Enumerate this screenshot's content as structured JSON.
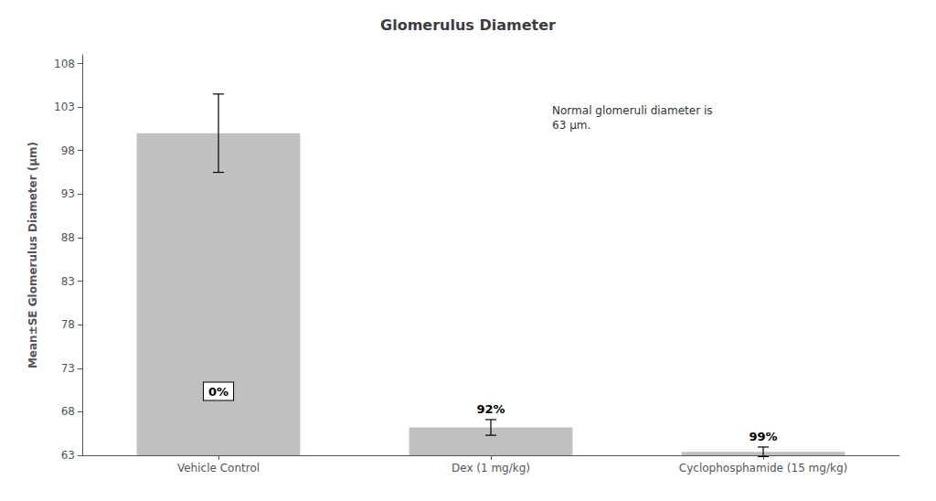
{
  "chart_data": {
    "type": "bar",
    "title": "Glomerulus Diameter",
    "ylabel": "Mean±SE Glomerulus Diameter (µm)",
    "categories": [
      "Vehicle Control",
      "Dex (1 mg/kg)",
      "Cyclophosphamide (15 mg/kg)"
    ],
    "values": [
      100.0,
      66.2,
      63.4
    ],
    "errors": [
      4.5,
      0.9,
      0.55
    ],
    "bar_labels": [
      "0%",
      "92%",
      "99%"
    ],
    "annotation": "Normal glomeruli diameter is\n63 µm.",
    "color": "#c0c0c0",
    "ylim": [
      63,
      109
    ],
    "yticks": [
      63,
      68,
      73,
      78,
      83,
      88,
      93,
      98,
      103,
      108
    ],
    "grid": false
  }
}
